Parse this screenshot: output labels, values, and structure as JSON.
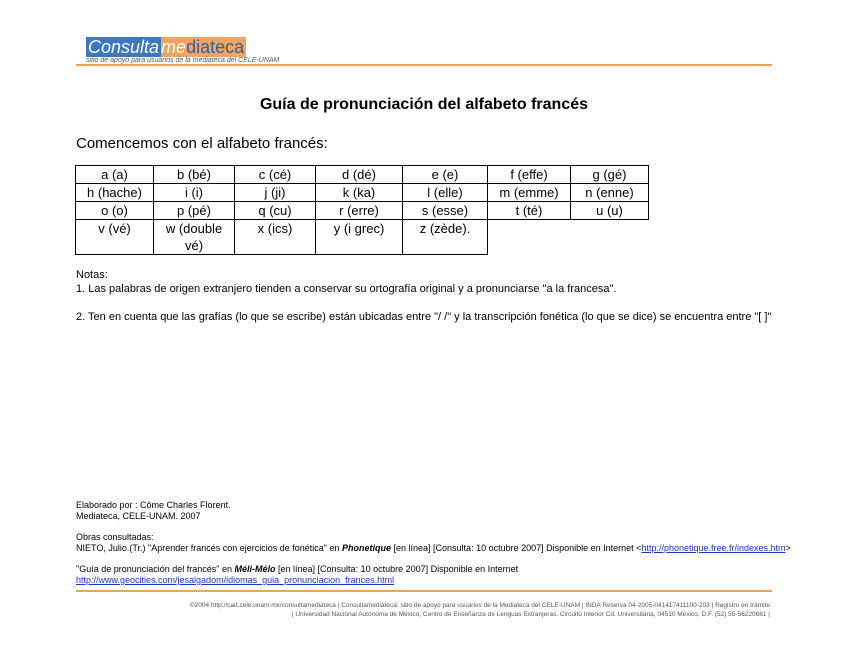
{
  "header": {
    "logo_part1": "Consulta",
    "logo_part2": "me",
    "logo_part3": "diateca",
    "tagline": "sitio de apoyo para usuarios de la mediateca del CELE-UNAM"
  },
  "title": "Guía de pronunciación del alfabeto francés",
  "intro": "Comencemos con el alfabeto francés:",
  "alphabet": [
    [
      "a (a)",
      "b (bé)",
      "c (cé)",
      "d (dé)",
      "e (e)",
      "f (effe)",
      "g (gé)"
    ],
    [
      "h (hache)",
      "i (i)",
      "j (ji)",
      "k (ka)",
      "l (elle)",
      "m (emme)",
      "n (enne)"
    ],
    [
      "o (o)",
      "p (pé)",
      "q (cu)",
      "r (erre)",
      "s (esse)",
      "t (té)",
      "u (u)"
    ],
    [
      "v (vé)",
      "w (double vé)",
      "x (ics)",
      "y (i grec)",
      "z (zède)."
    ]
  ],
  "notes": {
    "heading": "Notas:",
    "note1": "1. Las palabras de origen extranjero tienden a conservar su ortografía original y a pronunciarse \"a la francesa\".",
    "note2": "2. Ten en cuenta que las grafías (lo que se escribe) están ubicadas entre \"/ /\" y la transcripción fonética (lo que se dice) se encuentra entre \"[ ]\""
  },
  "credits": {
    "line1": "Elaborado por : Côme Charles Florent.",
    "line2": "Mediateca, CELE-UNAM. 2007"
  },
  "references": {
    "heading": "Obras consultadas:",
    "ref1_pre": "NIETO, Julio.(Tr.) \"Aprender francés con ejercicios de fonética\" en ",
    "ref1_bold": "Phonetique",
    "ref1_post": " [en línea]  [Consulta: 10 octubre 2007] Disponible en Internet <",
    "ref1_link": "http://phonetique.free.fr/indexes.htm",
    "ref1_end": ">",
    "ref2_pre": "\"Guía de pronunciación del francés\" en ",
    "ref2_bold": "Méli-Mélo",
    "ref2_post": " [en línea]  [Consulta: 10 octubre 2007] Disponible en Internet",
    "ref2_link": "http://www.geocities.com/jesalgadom/idiomas_guia_pronunciacion_frances.html"
  },
  "footer": {
    "line1": "©2004 http://cad.cele.unam.mx/consultamediateca | Consultamediateca: sitio de apoyo para usuarios de la Mediateca del CELE-UNAM | INDA Reserva 04-2005-041417411100-203 | Registro en trámite",
    "line2": "| Universidad Nacional Autónoma de México, Centro de Enseñanza de Lenguas Extranjeras. Circuito Interior Cd. Universitaria, 04510 México, D.F. (52) 55-56220681 |"
  },
  "colors": {
    "accent": "#f0a060",
    "logo_blue": "#3a78c2",
    "link": "#1a34c8"
  }
}
